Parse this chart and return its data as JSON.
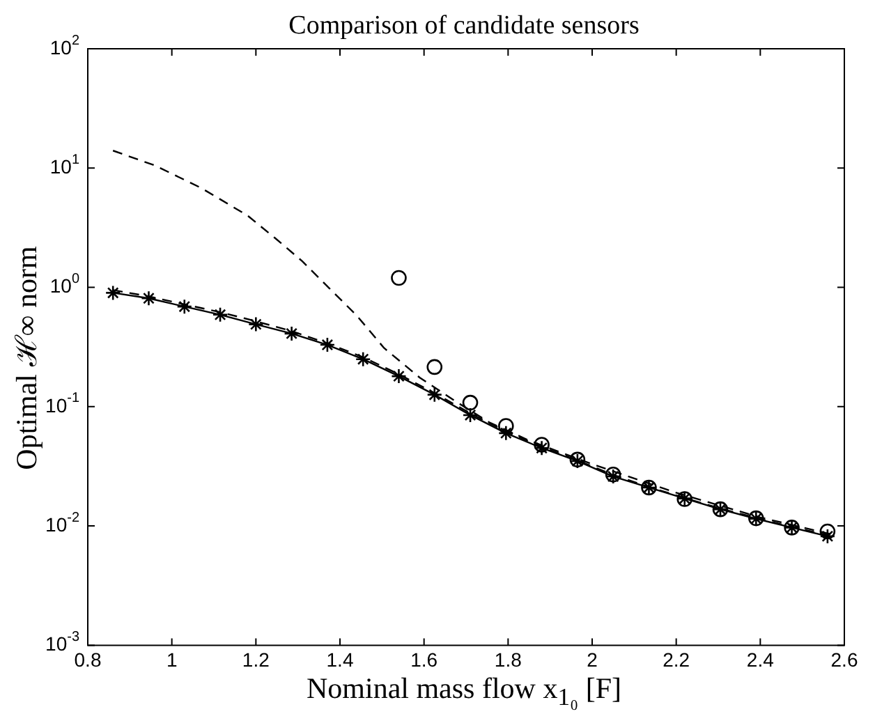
{
  "chart_data": {
    "type": "line",
    "title": "Comparison of candidate sensors",
    "xlabel": "Nominal mass flow x$_{1₀}$ [F]",
    "ylabel": "Optimal ℋ∞ norm",
    "log": "y",
    "grid": false,
    "legend": false,
    "xlim": [
      0.8,
      2.6
    ],
    "xticks": [
      0.8,
      1,
      1.2,
      1.4,
      1.6,
      1.8,
      2,
      2.2,
      2.4,
      2.6
    ],
    "ylim": [
      0.001,
      100
    ],
    "yticks": [
      {
        "value": 0.001,
        "label": "10$^{-3}$"
      },
      {
        "value": 0.01,
        "label": "10$^{-2}$"
      },
      {
        "value": 0.1,
        "label": "10$^{-1}$"
      },
      {
        "value": 1,
        "label": "10$^{0}$"
      },
      {
        "value": 10,
        "label": "10$^{1}$"
      },
      {
        "value": 100,
        "label": "10$^{2}$"
      }
    ],
    "series": [
      {
        "color": "#000000",
        "marker": "cross",
        "line_style": "solid",
        "x": [
          0.86,
          0.945,
          1.03,
          1.115,
          1.2,
          1.285,
          1.37,
          1.455,
          1.54,
          1.625,
          1.71,
          1.795,
          1.88,
          1.965,
          2.05,
          2.135,
          2.22,
          2.305,
          2.39,
          2.475,
          2.56
        ],
        "values": [
          0.9,
          0.81,
          0.69,
          0.59,
          0.49,
          0.41,
          0.33,
          0.25,
          0.18,
          0.126,
          0.085,
          0.06,
          0.045,
          0.035,
          0.026,
          0.021,
          0.017,
          0.0138,
          0.0115,
          0.0097,
          0.0082
        ]
      },
      {
        "color": "#000000",
        "marker": "none",
        "line_style": "dashed",
        "x": [
          0.86,
          0.945,
          1.03,
          1.115,
          1.2,
          1.285,
          1.37,
          1.455,
          1.54,
          1.625,
          1.71,
          1.795,
          1.88,
          1.965,
          2.05,
          2.135,
          2.22,
          2.305,
          2.39,
          2.475,
          2.56
        ],
        "values": [
          0.95,
          0.84,
          0.72,
          0.62,
          0.52,
          0.43,
          0.34,
          0.26,
          0.187,
          0.13,
          0.088,
          0.062,
          0.046,
          0.0355,
          0.0268,
          0.0212,
          0.0172,
          0.014,
          0.0117,
          0.0098,
          0.0084
        ]
      },
      {
        "color": "#000000",
        "marker": "none",
        "line_style": "dashed",
        "x": [
          0.86,
          0.96,
          1.07,
          1.18,
          1.245,
          1.31,
          1.375,
          1.44,
          1.505,
          1.59,
          1.673,
          1.755,
          1.85,
          2.0,
          2.2,
          2.4,
          2.57
        ],
        "values": [
          14,
          10.5,
          6.8,
          4.0,
          2.6,
          1.66,
          0.98,
          0.58,
          0.31,
          0.175,
          0.112,
          0.074,
          0.052,
          0.033,
          0.019,
          0.0118,
          0.0085
        ]
      },
      {
        "type": "scatter",
        "color": "#000000",
        "marker": "circle",
        "x": [
          1.54,
          1.625,
          1.71,
          1.795,
          1.88,
          1.965,
          2.05,
          2.135,
          2.22,
          2.305,
          2.39,
          2.475,
          2.56
        ],
        "values": [
          1.2,
          0.215,
          0.108,
          0.069,
          0.048,
          0.036,
          0.027,
          0.021,
          0.0168,
          0.0138,
          0.0116,
          0.0097,
          0.009
        ]
      }
    ]
  }
}
